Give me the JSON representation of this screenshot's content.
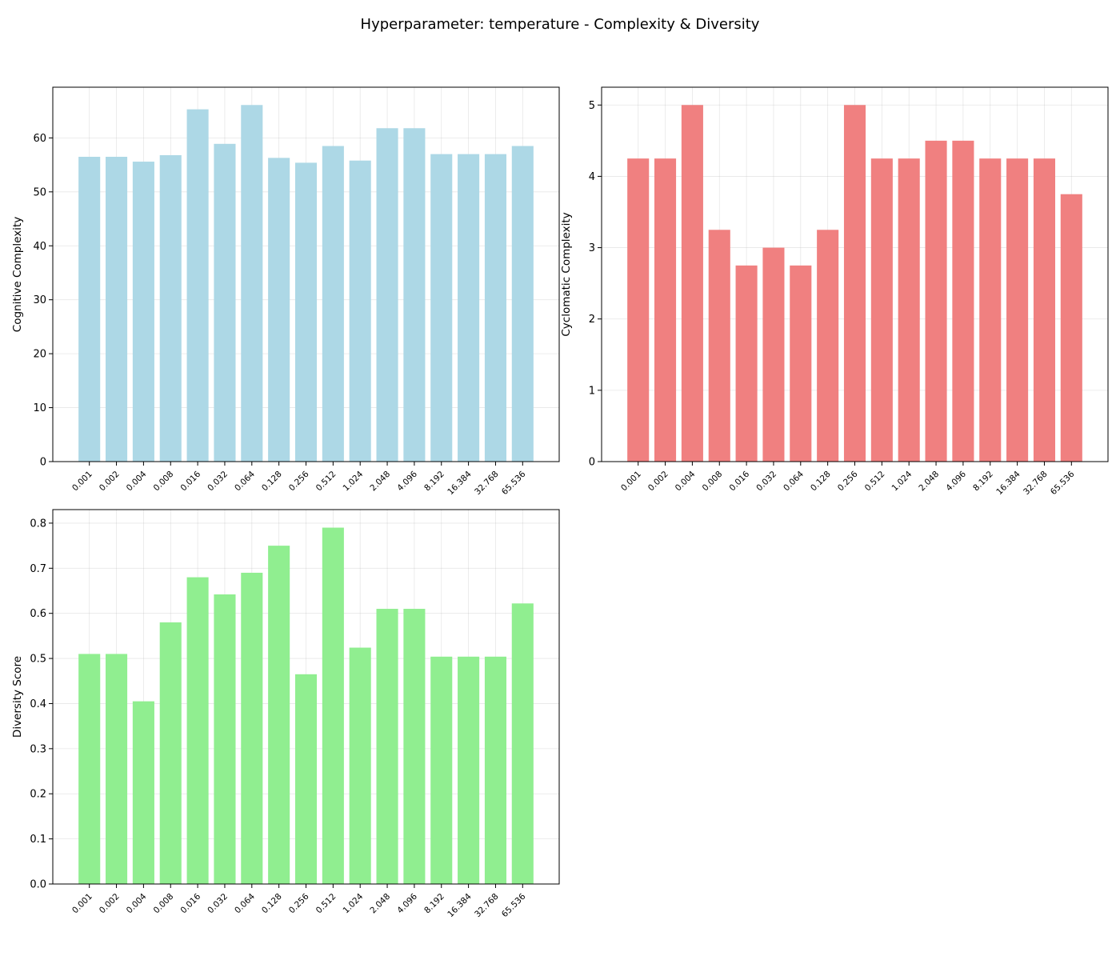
{
  "figure": {
    "title": "Hyperparameter: temperature - Complexity & Diversity"
  },
  "chart_data": [
    {
      "type": "bar",
      "title": "",
      "xlabel": "",
      "ylabel": "Cognitive Complexity",
      "color": "#add8e6",
      "categories": [
        "0.001",
        "0.002",
        "0.004",
        "0.008",
        "0.016",
        "0.032",
        "0.064",
        "0.128",
        "0.256",
        "0.512",
        "1.024",
        "2.048",
        "4.096",
        "8.192",
        "16.384",
        "32.768",
        "65.536"
      ],
      "values": [
        56.5,
        56.5,
        55.6,
        56.8,
        65.3,
        58.9,
        66.1,
        56.3,
        55.4,
        58.5,
        55.8,
        61.8,
        61.8,
        57.0,
        57.0,
        57.0,
        58.5
      ],
      "ylim": [
        0,
        69.4
      ],
      "yticks": [
        0,
        10,
        20,
        30,
        40,
        50,
        60
      ],
      "grid": true
    },
    {
      "type": "bar",
      "title": "",
      "xlabel": "",
      "ylabel": "Cyclomatic Complexity",
      "color": "#f08080",
      "categories": [
        "0.001",
        "0.002",
        "0.004",
        "0.008",
        "0.016",
        "0.032",
        "0.064",
        "0.128",
        "0.256",
        "0.512",
        "1.024",
        "2.048",
        "4.096",
        "8.192",
        "16.384",
        "32.768",
        "65.536"
      ],
      "values": [
        4.25,
        4.25,
        5.0,
        3.25,
        2.75,
        3.0,
        2.75,
        3.25,
        5.0,
        4.25,
        4.25,
        4.5,
        4.5,
        4.25,
        4.25,
        4.25,
        3.75
      ],
      "ylim": [
        0,
        5.25
      ],
      "yticks": [
        0,
        1,
        2,
        3,
        4,
        5
      ],
      "grid": true
    },
    {
      "type": "bar",
      "title": "",
      "xlabel": "",
      "ylabel": "Diversity Score",
      "color": "#90ee90",
      "categories": [
        "0.001",
        "0.002",
        "0.004",
        "0.008",
        "0.016",
        "0.032",
        "0.064",
        "0.128",
        "0.256",
        "0.512",
        "1.024",
        "2.048",
        "4.096",
        "8.192",
        "16.384",
        "32.768",
        "65.536"
      ],
      "values": [
        0.51,
        0.51,
        0.405,
        0.58,
        0.68,
        0.642,
        0.69,
        0.75,
        0.465,
        0.79,
        0.524,
        0.61,
        0.61,
        0.504,
        0.504,
        0.504,
        0.622
      ],
      "ylim": [
        0,
        0.83
      ],
      "yticks": [
        0.0,
        0.1,
        0.2,
        0.3,
        0.4,
        0.5,
        0.6,
        0.7,
        0.8
      ],
      "ytick_decimals": 1,
      "grid": true
    }
  ]
}
